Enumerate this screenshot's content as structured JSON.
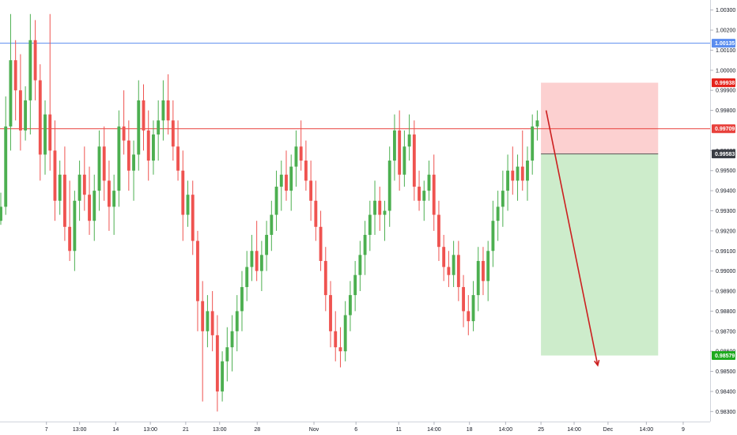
{
  "chart_data": {
    "type": "candlestick",
    "ylim": [
      0.9825,
      1.0035
    ],
    "y_ticks": [
      "1.00300",
      "1.00200",
      "1.00100",
      "1.00000",
      "0.99900",
      "0.99800",
      "0.99600",
      "0.99500",
      "0.99400",
      "0.99300",
      "0.99200",
      "0.99100",
      "0.99000",
      "0.98900",
      "0.98800",
      "0.98700",
      "0.98600",
      "0.98500",
      "0.98400",
      "0.98300"
    ],
    "x_ticks": [
      {
        "label": "7",
        "x": 0.063
      },
      {
        "label": "13:00",
        "x": 0.108
      },
      {
        "label": "14",
        "x": 0.157
      },
      {
        "label": "13:00",
        "x": 0.204
      },
      {
        "label": "21",
        "x": 0.252
      },
      {
        "label": "13:00",
        "x": 0.298
      },
      {
        "label": "28",
        "x": 0.349
      },
      {
        "label": "Nov",
        "x": 0.426
      },
      {
        "label": "6",
        "x": 0.483
      },
      {
        "label": "11",
        "x": 0.541
      },
      {
        "label": "14:00",
        "x": 0.589
      },
      {
        "label": "18",
        "x": 0.637
      },
      {
        "label": "14:00",
        "x": 0.686
      },
      {
        "label": "25",
        "x": 0.734
      },
      {
        "label": "14:00",
        "x": 0.779
      },
      {
        "label": "Dec",
        "x": 0.825
      },
      {
        "label": "14:00",
        "x": 0.877
      },
      {
        "label": "9",
        "x": 0.927
      }
    ],
    "horizontal_lines": [
      {
        "price": 1.00135,
        "label": "1.00135",
        "color": "#5b8def"
      },
      {
        "price": 0.99709,
        "label": "0.99709",
        "color": "#e8413c"
      }
    ],
    "price_tags": [
      {
        "price": 0.99938,
        "label": "0.99938",
        "color": "#e5231b"
      },
      {
        "price": 0.99583,
        "label": "0.99583",
        "color": "#3a3d44"
      },
      {
        "price": 0.98579,
        "label": "0.98579",
        "color": "#1faa1f"
      }
    ],
    "position": {
      "type": "short",
      "entry": 0.99583,
      "stop": 0.99938,
      "target": 0.98579,
      "x_start": 0.734,
      "x_end": 0.893,
      "stop_zone_color": "#fcd0d0",
      "target_zone_color": "#cdeccb"
    },
    "projection_arrow": {
      "from": {
        "x": 0.741,
        "price": 0.998
      },
      "to": {
        "x": 0.811,
        "price": 0.9853
      },
      "color": "#cc1f1f"
    },
    "up_color": "#4caf50",
    "down_color": "#ef5350",
    "x_range": [
      0.0,
      0.955
    ],
    "candles": [
      [
        0.9925,
        0.9939,
        0.9923,
        0.9932
      ],
      [
        0.9932,
        0.9987,
        0.9928,
        0.9972
      ],
      [
        0.9972,
        1.0028,
        0.996,
        1.0005
      ],
      [
        1.0005,
        1.0015,
        0.9975,
        0.999
      ],
      [
        0.999,
        1.0008,
        0.996,
        0.997
      ],
      [
        0.997,
        0.9992,
        0.9965,
        0.9985
      ],
      [
        0.9985,
        1.0028,
        0.9968,
        1.0015
      ],
      [
        1.0015,
        1.0025,
        0.9985,
        0.9995
      ],
      [
        0.9995,
        1.0003,
        0.9945,
        0.9958
      ],
      [
        0.9958,
        0.9985,
        0.9948,
        0.9978
      ],
      [
        0.9978,
        1.0028,
        0.995,
        0.996
      ],
      [
        0.996,
        0.9975,
        0.9925,
        0.9935
      ],
      [
        0.9935,
        0.9955,
        0.9928,
        0.9948
      ],
      [
        0.9948,
        0.9962,
        0.9915,
        0.9922
      ],
      [
        0.9922,
        0.9945,
        0.9905,
        0.991
      ],
      [
        0.991,
        0.994,
        0.99,
        0.9935
      ],
      [
        0.9935,
        0.9955,
        0.9925,
        0.9948
      ],
      [
        0.9948,
        0.9962,
        0.993,
        0.9938
      ],
      [
        0.9938,
        0.9952,
        0.9918,
        0.9925
      ],
      [
        0.9925,
        0.9948,
        0.9915,
        0.994
      ],
      [
        0.994,
        0.997,
        0.993,
        0.9962
      ],
      [
        0.9962,
        0.9972,
        0.9935,
        0.9945
      ],
      [
        0.9945,
        0.9955,
        0.992,
        0.9932
      ],
      [
        0.9932,
        0.9948,
        0.9918,
        0.994
      ],
      [
        0.994,
        0.998,
        0.9932,
        0.9972
      ],
      [
        0.9972,
        0.999,
        0.9958,
        0.9965
      ],
      [
        0.9965,
        0.9975,
        0.994,
        0.995
      ],
      [
        0.995,
        0.9965,
        0.9935,
        0.9958
      ],
      [
        0.9958,
        0.9995,
        0.995,
        0.9985
      ],
      [
        0.9985,
        0.9993,
        0.996,
        0.997
      ],
      [
        0.997,
        0.998,
        0.9945,
        0.9955
      ],
      [
        0.9955,
        0.9975,
        0.9948,
        0.9968
      ],
      [
        0.9968,
        0.9985,
        0.9955,
        0.9975
      ],
      [
        0.9975,
        0.9995,
        0.9965,
        0.9985
      ],
      [
        0.9985,
        0.9998,
        0.9968,
        0.9975
      ],
      [
        0.9975,
        0.9985,
        0.9955,
        0.9962
      ],
      [
        0.9962,
        0.9975,
        0.9945,
        0.995
      ],
      [
        0.995,
        0.996,
        0.9915,
        0.9928
      ],
      [
        0.9928,
        0.9945,
        0.9922,
        0.9938
      ],
      [
        0.9938,
        0.9945,
        0.9908,
        0.9915
      ],
      [
        0.9915,
        0.992,
        0.987,
        0.9885
      ],
      [
        0.9885,
        0.9895,
        0.9835,
        0.987
      ],
      [
        0.987,
        0.9888,
        0.9862,
        0.988
      ],
      [
        0.988,
        0.989,
        0.986,
        0.9868
      ],
      [
        0.9868,
        0.9878,
        0.983,
        0.984
      ],
      [
        0.984,
        0.986,
        0.9835,
        0.9855
      ],
      [
        0.9855,
        0.9872,
        0.9845,
        0.9862
      ],
      [
        0.9862,
        0.9878,
        0.985,
        0.987
      ],
      [
        0.987,
        0.9888,
        0.986,
        0.988
      ],
      [
        0.988,
        0.99,
        0.987,
        0.9892
      ],
      [
        0.9892,
        0.991,
        0.9885,
        0.9902
      ],
      [
        0.9902,
        0.9918,
        0.9895,
        0.991
      ],
      [
        0.991,
        0.9925,
        0.9895,
        0.99
      ],
      [
        0.99,
        0.9915,
        0.989,
        0.9908
      ],
      [
        0.9908,
        0.9925,
        0.99,
        0.9918
      ],
      [
        0.9918,
        0.9935,
        0.991,
        0.9928
      ],
      [
        0.9928,
        0.995,
        0.992,
        0.9942
      ],
      [
        0.9942,
        0.9955,
        0.993,
        0.9948
      ],
      [
        0.9948,
        0.996,
        0.9935,
        0.994
      ],
      [
        0.994,
        0.9958,
        0.993,
        0.9952
      ],
      [
        0.9952,
        0.997,
        0.9942,
        0.9962
      ],
      [
        0.9962,
        0.9975,
        0.995,
        0.9955
      ],
      [
        0.9955,
        0.9965,
        0.994,
        0.9945
      ],
      [
        0.9945,
        0.9955,
        0.9925,
        0.9935
      ],
      [
        0.9935,
        0.9945,
        0.9915,
        0.9922
      ],
      [
        0.9922,
        0.993,
        0.99,
        0.9905
      ],
      [
        0.9905,
        0.9912,
        0.988,
        0.9888
      ],
      [
        0.9888,
        0.9895,
        0.9862,
        0.987
      ],
      [
        0.987,
        0.988,
        0.9855,
        0.9862
      ],
      [
        0.9862,
        0.9872,
        0.9852,
        0.986
      ],
      [
        0.986,
        0.9885,
        0.9855,
        0.9878
      ],
      [
        0.9878,
        0.9895,
        0.987,
        0.9888
      ],
      [
        0.9888,
        0.9905,
        0.988,
        0.9898
      ],
      [
        0.9898,
        0.9915,
        0.989,
        0.9908
      ],
      [
        0.9908,
        0.9925,
        0.9898,
        0.9918
      ],
      [
        0.9918,
        0.9935,
        0.991,
        0.9928
      ],
      [
        0.9928,
        0.9945,
        0.9918,
        0.9935
      ],
      [
        0.9935,
        0.9942,
        0.992,
        0.9928
      ],
      [
        0.9928,
        0.9935,
        0.9915,
        0.993
      ],
      [
        0.993,
        0.9962,
        0.9922,
        0.9955
      ],
      [
        0.9955,
        0.9978,
        0.9945,
        0.997
      ],
      [
        0.997,
        0.998,
        0.994,
        0.9948
      ],
      [
        0.9948,
        0.997,
        0.9942,
        0.9962
      ],
      [
        0.9962,
        0.9978,
        0.9955,
        0.9968
      ],
      [
        0.9968,
        0.9975,
        0.9935,
        0.9942
      ],
      [
        0.9942,
        0.995,
        0.993,
        0.9935
      ],
      [
        0.9935,
        0.9945,
        0.9925,
        0.994
      ],
      [
        0.994,
        0.9955,
        0.9935,
        0.9948
      ],
      [
        0.9948,
        0.9958,
        0.992,
        0.9928
      ],
      [
        0.9928,
        0.9935,
        0.9905,
        0.9912
      ],
      [
        0.9912,
        0.9918,
        0.9895,
        0.9902
      ],
      [
        0.9902,
        0.991,
        0.9892,
        0.9898
      ],
      [
        0.9898,
        0.9915,
        0.9892,
        0.9908
      ],
      [
        0.9908,
        0.9915,
        0.9885,
        0.9892
      ],
      [
        0.9892,
        0.9898,
        0.9872,
        0.988
      ],
      [
        0.988,
        0.9888,
        0.9868,
        0.9875
      ],
      [
        0.9875,
        0.9895,
        0.987,
        0.9888
      ],
      [
        0.9888,
        0.9912,
        0.988,
        0.9905
      ],
      [
        0.9905,
        0.9912,
        0.9888,
        0.9895
      ],
      [
        0.9895,
        0.9915,
        0.9885,
        0.991
      ],
      [
        0.991,
        0.9935,
        0.9902,
        0.9925
      ],
      [
        0.9925,
        0.994,
        0.9915,
        0.9932
      ],
      [
        0.9932,
        0.995,
        0.9922,
        0.994
      ],
      [
        0.994,
        0.9958,
        0.993,
        0.995
      ],
      [
        0.995,
        0.9962,
        0.9938,
        0.9945
      ],
      [
        0.9945,
        0.9958,
        0.9935,
        0.9952
      ],
      [
        0.9952,
        0.997,
        0.994,
        0.9945
      ],
      [
        0.9945,
        0.9962,
        0.9935,
        0.9955
      ],
      [
        0.9955,
        0.9978,
        0.9948,
        0.9972
      ],
      [
        0.9972,
        0.998,
        0.9965,
        0.9975
      ]
    ]
  }
}
